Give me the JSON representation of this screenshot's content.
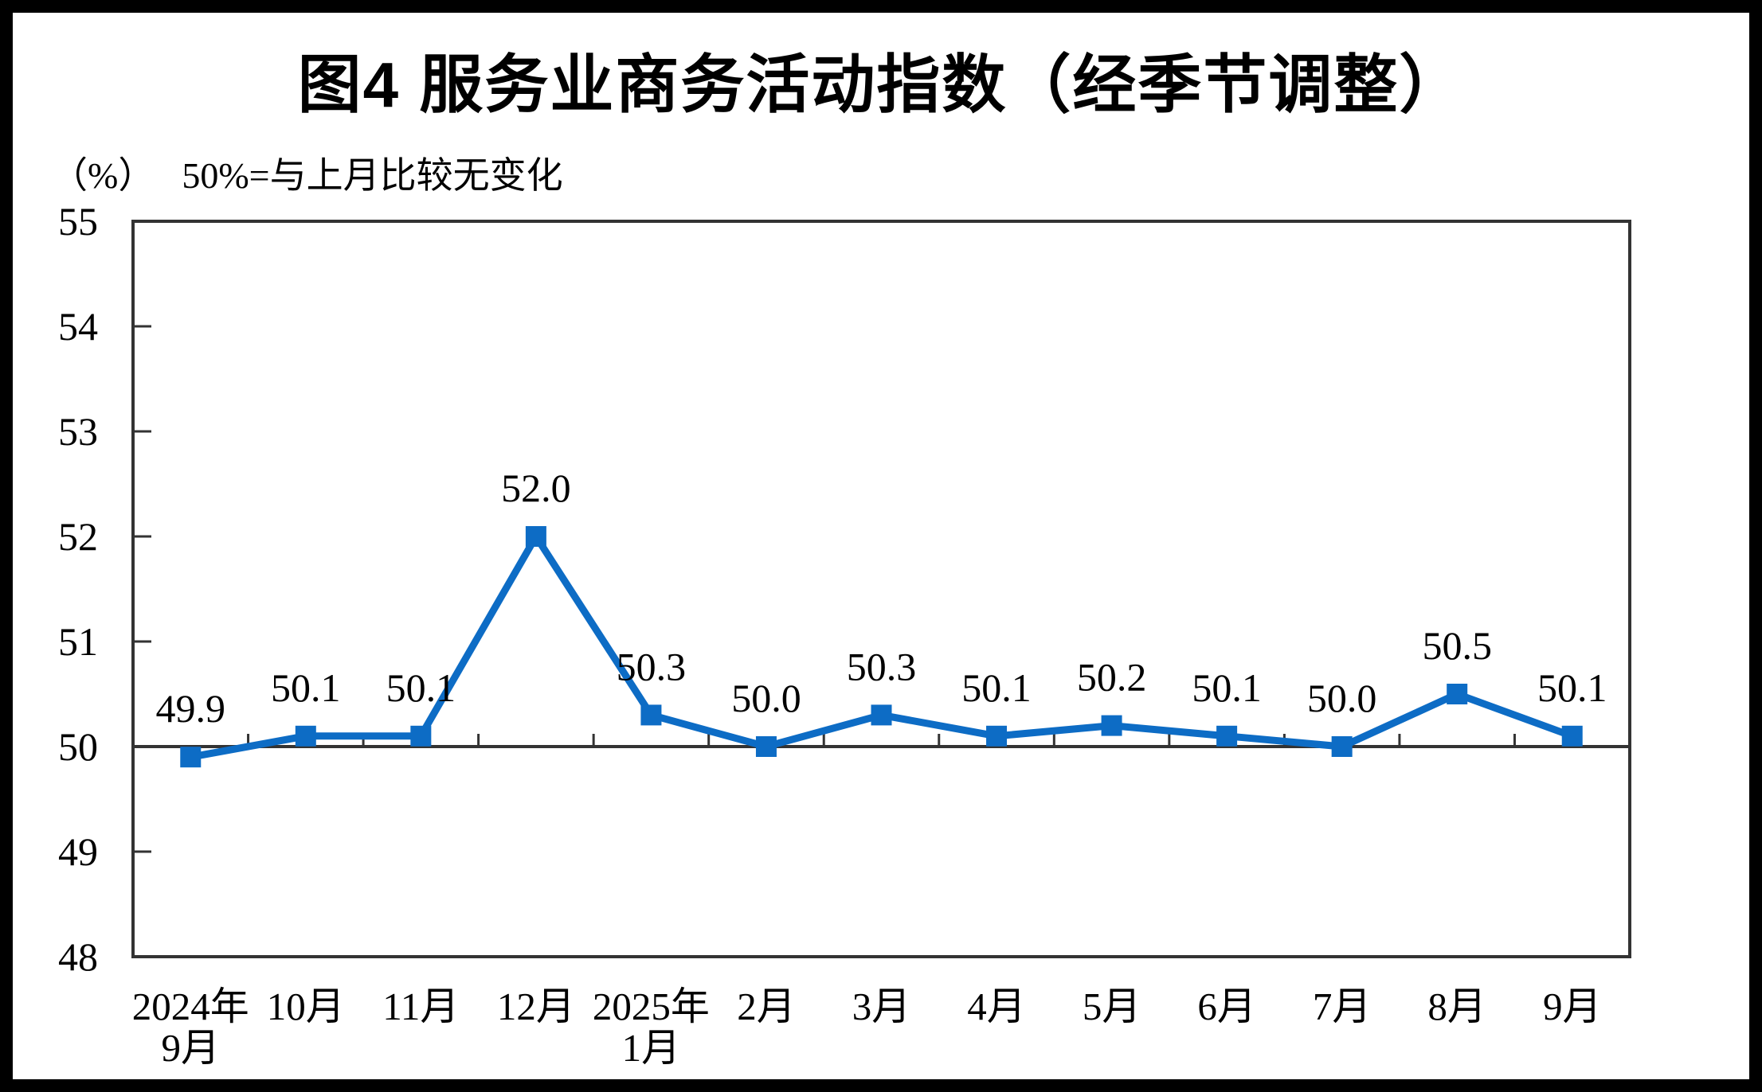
{
  "chart_data": {
    "type": "line",
    "title": "图4 服务业商务活动指数（经季节调整）",
    "unit_label": "（%）",
    "note": "50%=与上月比较无变化",
    "xlabel": "",
    "ylabel": "",
    "categories": [
      "2024年9月",
      "10月",
      "11月",
      "12月",
      "2025年1月",
      "2月",
      "3月",
      "4月",
      "5月",
      "6月",
      "7月",
      "8月",
      "9月"
    ],
    "category_lines": [
      [
        "2024年",
        "9月"
      ],
      [
        "10月"
      ],
      [
        "11月"
      ],
      [
        "12月"
      ],
      [
        "2025年",
        "1月"
      ],
      [
        "2月"
      ],
      [
        "3月"
      ],
      [
        "4月"
      ],
      [
        "5月"
      ],
      [
        "6月"
      ],
      [
        "7月"
      ],
      [
        "8月"
      ],
      [
        "9月"
      ]
    ],
    "series": [
      {
        "name": "服务业商务活动指数",
        "values": [
          49.9,
          50.1,
          50.1,
          52.0,
          50.3,
          50.0,
          50.3,
          50.1,
          50.2,
          50.1,
          50.0,
          50.5,
          50.1
        ]
      }
    ],
    "data_labels": [
      "49.9",
      "50.1",
      "50.1",
      "52.0",
      "50.3",
      "50.0",
      "50.3",
      "50.1",
      "50.2",
      "50.1",
      "50.0",
      "50.5",
      "50.1"
    ],
    "ylim": [
      48,
      55
    ],
    "yticks": [
      48,
      49,
      50,
      51,
      52,
      53,
      54,
      55
    ],
    "reference_line": 50,
    "grid": false,
    "legend": "none",
    "marker": "square",
    "line_color": "#0D6CC5",
    "axis_color": "#333333",
    "text_color": "#000000"
  }
}
